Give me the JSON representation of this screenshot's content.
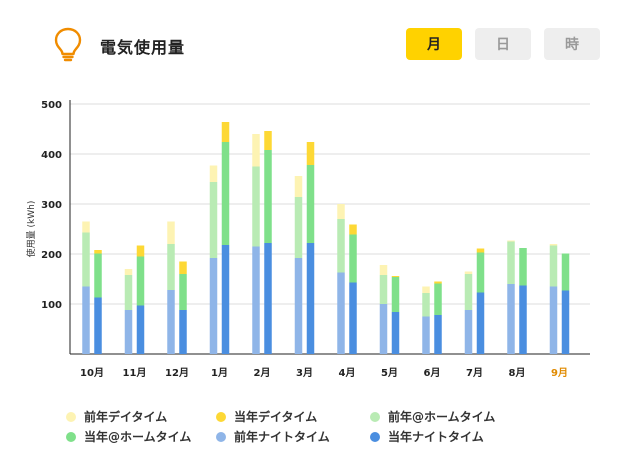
{
  "header": {
    "title": "電気使用量",
    "icon": "lightbulb-icon",
    "tabs": [
      {
        "label": "月",
        "active": true
      },
      {
        "label": "日",
        "active": false
      },
      {
        "label": "時",
        "active": false
      }
    ]
  },
  "colors": {
    "prev_day": "#fdf3b3",
    "cur_day": "#fdd835",
    "prev_home": "#b9ebb4",
    "cur_home": "#7fe08a",
    "prev_night": "#8fb5e8",
    "cur_night": "#4a8ee0",
    "accent": "#ffd200",
    "highlight_label": "#e08a00"
  },
  "chart_data": {
    "type": "bar",
    "stacked": true,
    "ylabel": "使用量 (kWh)",
    "ylim": [
      0,
      500
    ],
    "yticks": [
      "100",
      "200",
      "300",
      "400",
      "500"
    ],
    "grid": true,
    "categories": [
      "10月",
      "11月",
      "12月",
      "1月",
      "2月",
      "3月",
      "4月",
      "5月",
      "6月",
      "7月",
      "8月",
      "9月"
    ],
    "highlight_category": "9月",
    "groups": [
      {
        "name": "前年",
        "series": [
          {
            "name": "前年ナイトタイム",
            "values": [
              135,
              88,
              128,
              192,
              215,
              192,
              163,
              100,
              75,
              88,
              140,
              135
            ]
          },
          {
            "name": "前年@ホームタイム",
            "values": [
              108,
              70,
              92,
              152,
              160,
              122,
              107,
              58,
              47,
              72,
              85,
              82
            ]
          },
          {
            "name": "前年デイタイム",
            "values": [
              22,
              12,
              45,
              33,
              65,
              42,
              30,
              20,
              13,
              5,
              2,
              3
            ]
          }
        ]
      },
      {
        "name": "当年",
        "series": [
          {
            "name": "当年ナイトタイム",
            "values": [
              113,
              97,
              88,
              218,
              222,
              222,
              143,
              84,
              78,
              123,
              137,
              127
            ]
          },
          {
            "name": "当年@ホームタイム",
            "values": [
              88,
              98,
              72,
              206,
              186,
              156,
              96,
              70,
              63,
              80,
              75,
              74
            ]
          },
          {
            "name": "当年デイタイム",
            "values": [
              7,
              22,
              25,
              40,
              38,
              46,
              20,
              2,
              4,
              8,
              0,
              0
            ]
          }
        ]
      }
    ],
    "legend": [
      {
        "label": "前年デイタイム",
        "color": "#fdf3b3"
      },
      {
        "label": "当年デイタイム",
        "color": "#fdd835"
      },
      {
        "label": "前年@ホームタイム",
        "color": "#b9ebb4"
      },
      {
        "label": "当年@ホームタイム",
        "color": "#7fe08a"
      },
      {
        "label": "前年ナイトタイム",
        "color": "#8fb5e8"
      },
      {
        "label": "当年ナイトタイム",
        "color": "#4a8ee0"
      }
    ],
    "legend_position": "bottom"
  }
}
